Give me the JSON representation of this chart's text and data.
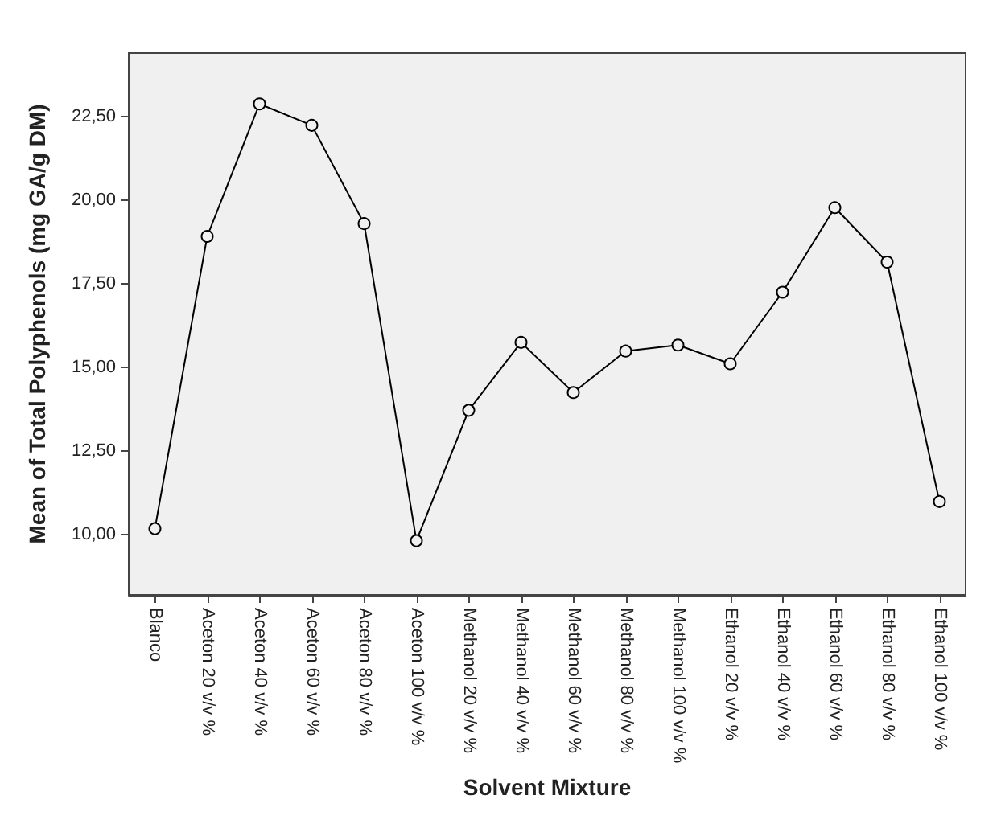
{
  "chart_data": {
    "type": "line",
    "xlabel": "Solvent Mixture",
    "ylabel": "Mean of Total Polyphenols (mg GA/g DM)",
    "categories": [
      "Blanco",
      "Aceton 20 v/v %",
      "Aceton 40 v/v %",
      "Aceton 60 v/v %",
      "Aceton 80 v/v %",
      "Aceton 100 v/v %",
      "Methanol 20 v/v %",
      "Methanol 40 v/v %",
      "Methanol 60 v/v %",
      "Methanol 80 v/v %",
      "Methanol 100 v/v %",
      "Ethanol 20 v/v %",
      "Ethanol 40 v/v %",
      "Ethanol 60 v/v %",
      "Ethanol 80 v/v %",
      "Ethanol 100 v/v %"
    ],
    "series": [
      {
        "color": "#000000",
        "values": [
          10.18,
          18.92,
          22.88,
          22.24,
          19.3,
          9.82,
          13.72,
          15.75,
          14.25,
          15.49,
          15.67,
          15.11,
          17.25,
          19.78,
          18.15,
          10.99
        ]
      }
    ],
    "ylim": [
      8.2,
      24.4
    ],
    "yticks": [
      {
        "value": 10,
        "label": "10,00"
      },
      {
        "value": 12.5,
        "label": "12,50"
      },
      {
        "value": 15,
        "label": "15,00"
      },
      {
        "value": 17.5,
        "label": "17,50"
      },
      {
        "value": 20,
        "label": "20,00"
      },
      {
        "value": 22.5,
        "label": "22,50"
      }
    ],
    "grid": false,
    "marker": "circle",
    "line_style": "solid"
  }
}
